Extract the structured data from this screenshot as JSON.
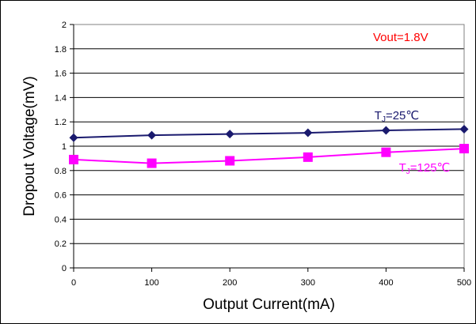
{
  "chart_data": {
    "type": "line",
    "title": "",
    "xlabel": "Output Current(mA)",
    "ylabel": "Dropout Voltage(mV)",
    "xlim": [
      0,
      500
    ],
    "ylim": [
      0,
      2
    ],
    "x_ticks": [
      0,
      100,
      200,
      300,
      400,
      500
    ],
    "y_ticks": [
      0,
      0.2,
      0.4,
      0.6,
      0.8,
      1,
      1.2,
      1.4,
      1.6,
      1.8,
      2
    ],
    "grid": "horizontal",
    "x": [
      0,
      100,
      200,
      300,
      400,
      500
    ],
    "series": [
      {
        "label": {
          "prefix": "T",
          "sub": "J",
          "suffix": "=25℃"
        },
        "color": "#1a1a6e",
        "marker": "diamond",
        "values": [
          1.07,
          1.09,
          1.1,
          1.11,
          1.13,
          1.14
        ]
      },
      {
        "label": {
          "prefix": "T",
          "sub": "J",
          "suffix": "=125℃"
        },
        "color": "#ff00ff",
        "marker": "square",
        "values": [
          0.89,
          0.86,
          0.88,
          0.91,
          0.95,
          0.98
        ]
      }
    ],
    "annotation": {
      "text": "Vout=1.8V",
      "color": "#ff0000"
    }
  }
}
